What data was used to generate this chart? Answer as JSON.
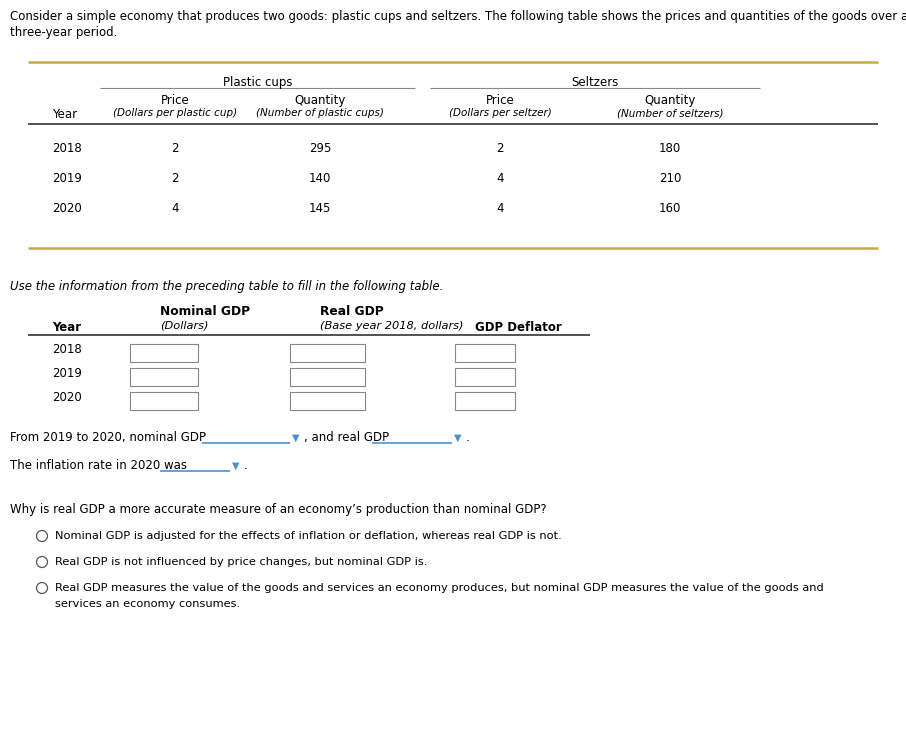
{
  "intro_line1": "Consider a simple economy that produces two goods: plastic cups and seltzers. The following table shows the prices and quantities of the goods over a",
  "intro_line2": "three-year period.",
  "table1": {
    "plastic_cups_header": "Plastic cups",
    "seltzers_header": "Seltzers",
    "col_year": "Year",
    "col_price_cups": "Price",
    "col_qty_cups": "Quantity",
    "col_price_seltz": "Price",
    "col_qty_seltz": "Quantity",
    "sub_price_cups": "(Dollars per plastic cup)",
    "sub_qty_cups": "(Number of plastic cups)",
    "sub_price_seltz": "(Dollars per seltzer)",
    "sub_qty_seltz": "(Number of seltzers)",
    "rows": [
      {
        "year": "2018",
        "price_cups": "2",
        "qty_cups": "295",
        "price_seltz": "2",
        "qty_seltz": "180"
      },
      {
        "year": "2019",
        "price_cups": "2",
        "qty_cups": "140",
        "price_seltz": "4",
        "qty_seltz": "210"
      },
      {
        "year": "2020",
        "price_cups": "4",
        "qty_cups": "145",
        "price_seltz": "4",
        "qty_seltz": "160"
      }
    ]
  },
  "instruction": "Use the information from the preceding table to fill in the following table.",
  "table2": {
    "col_year": "Year",
    "col_nominal": "Nominal GDP",
    "col_real": "Real GDP",
    "col_deflator": "GDP Deflator",
    "sub_nominal": "(Dollars)",
    "sub_real": "(Base year 2018, dollars)",
    "years": [
      "2018",
      "2019",
      "2020"
    ]
  },
  "drop_line1a": "From 2019 to 2020, nominal GDP",
  "drop_line1b": ", and real GDP",
  "drop_line1c": ".",
  "drop_line2a": "The inflation rate in 2020 was",
  "drop_line2b": ".",
  "question": "Why is real GDP a more accurate measure of an economy’s production than nominal GDP?",
  "options": [
    "Nominal GDP is adjusted for the effects of inflation or deflation, whereas real GDP is not.",
    "Real GDP is not influenced by price changes, but nominal GDP is.",
    "Real GDP measures the value of the goods and services an economy produces, but nominal GDP measures the value of the goods and"
  ],
  "option3_line2": "services an economy consumes.",
  "bg_color": "#ffffff",
  "gold_line": "#c8a84b",
  "gray_line": "#888888",
  "blue_line": "#4a90d9",
  "text_color": "#000000"
}
